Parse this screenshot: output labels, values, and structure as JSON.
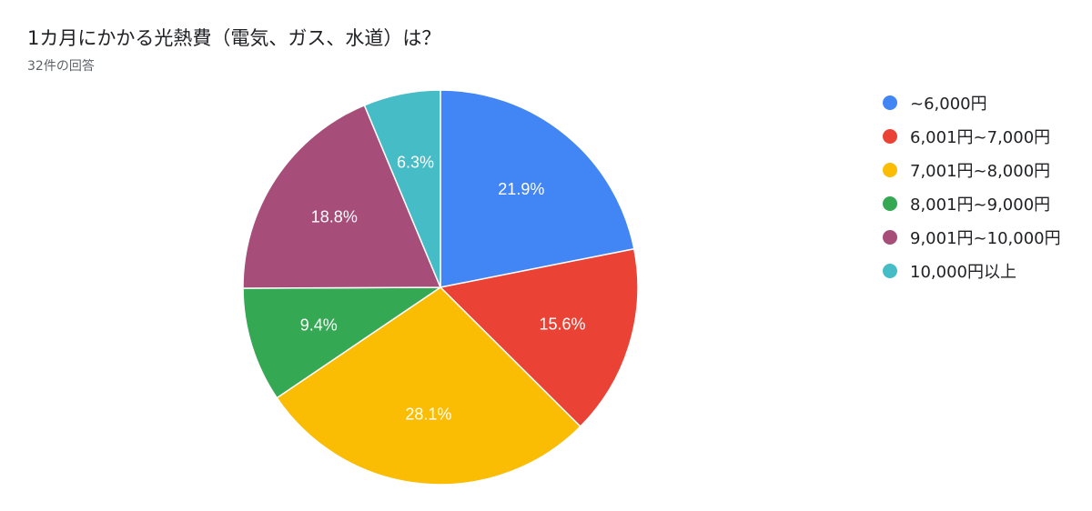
{
  "chart_data": {
    "type": "pie",
    "title": "1カ月にかかる光熱費（電気、ガス、水道）は？",
    "subtitle": "32件の回答",
    "legend_position": "right",
    "slices": [
      {
        "label": "~6,000円",
        "value": 21.9,
        "value_label": "21.9%",
        "color": "#4285f4"
      },
      {
        "label": "6,001円~7,000円",
        "value": 15.6,
        "value_label": "15.6%",
        "color": "#ea4335"
      },
      {
        "label": "7,001円~8,000円",
        "value": 28.1,
        "value_label": "28.1%",
        "color": "#fbbc04"
      },
      {
        "label": "8,001円~9,000円",
        "value": 9.4,
        "value_label": "9.4%",
        "color": "#34a853"
      },
      {
        "label": "9,001円~10,000円",
        "value": 18.8,
        "value_label": "18.8%",
        "color": "#a64d79"
      },
      {
        "label": "10,000円以上",
        "value": 6.3,
        "value_label": "6.3%",
        "color": "#46bdc6"
      }
    ]
  }
}
